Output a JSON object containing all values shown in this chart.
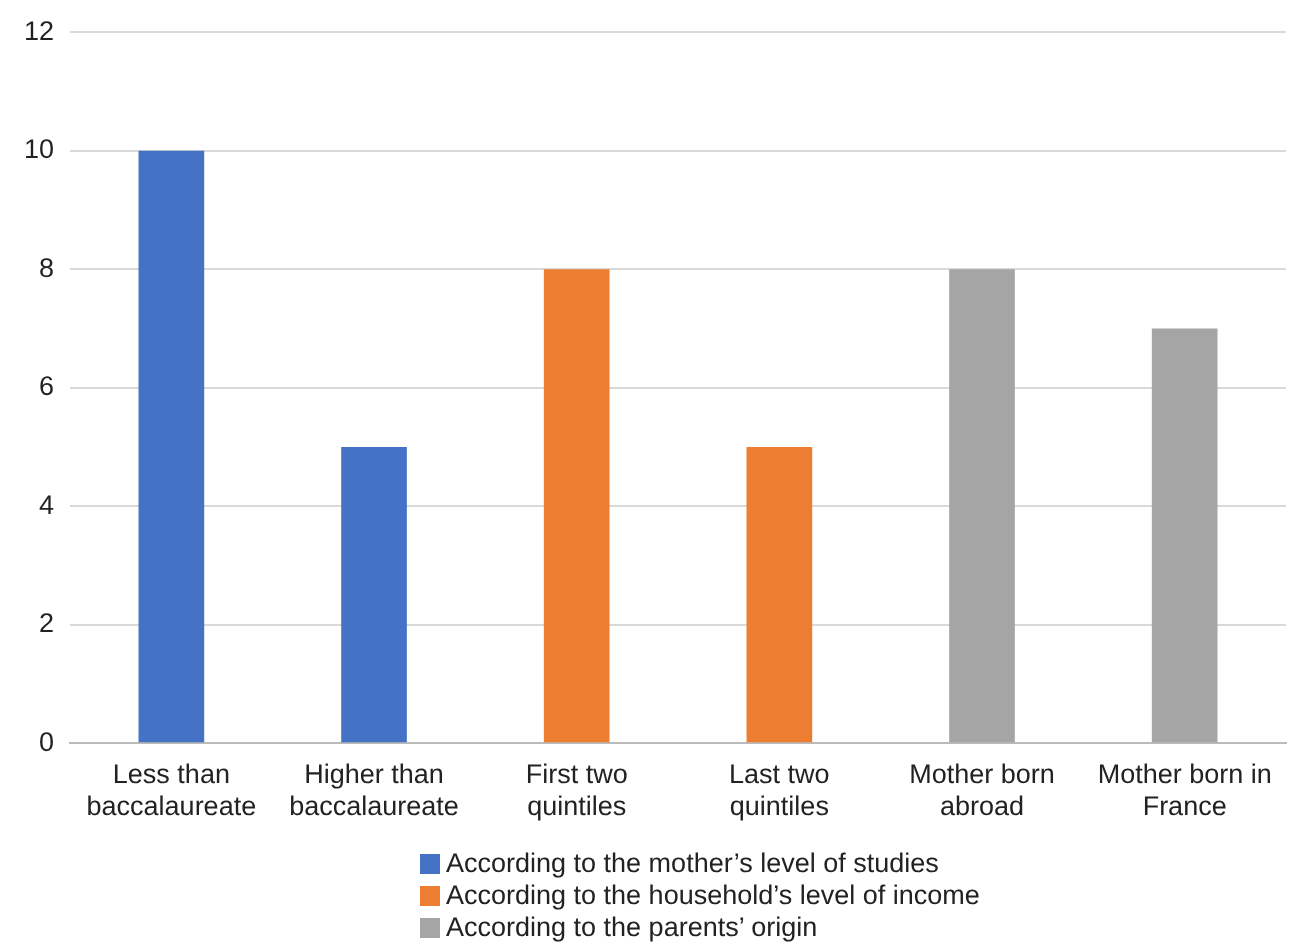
{
  "chart_data": {
    "type": "bar",
    "categories": [
      "Less than baccalaureate",
      "Higher than baccalaureate",
      "First two quintiles",
      "Last two quintiles",
      "Mother born abroad",
      "Mother born in France"
    ],
    "series": [
      {
        "name": "According to the mother’s level of studies",
        "color": "#4472c4",
        "values": [
          10,
          5,
          null,
          null,
          null,
          null
        ]
      },
      {
        "name": "According to the household’s level of income",
        "color": "#ed7d31",
        "values": [
          null,
          null,
          8,
          5,
          null,
          null
        ]
      },
      {
        "name": "According to the parents’ origin",
        "color": "#a5a5a5",
        "values": [
          null,
          null,
          null,
          null,
          8,
          7
        ]
      }
    ],
    "ylim": [
      0,
      12
    ],
    "yticks": [
      0,
      2,
      4,
      6,
      8,
      10,
      12
    ],
    "grid": "y",
    "legend": "bottom"
  }
}
